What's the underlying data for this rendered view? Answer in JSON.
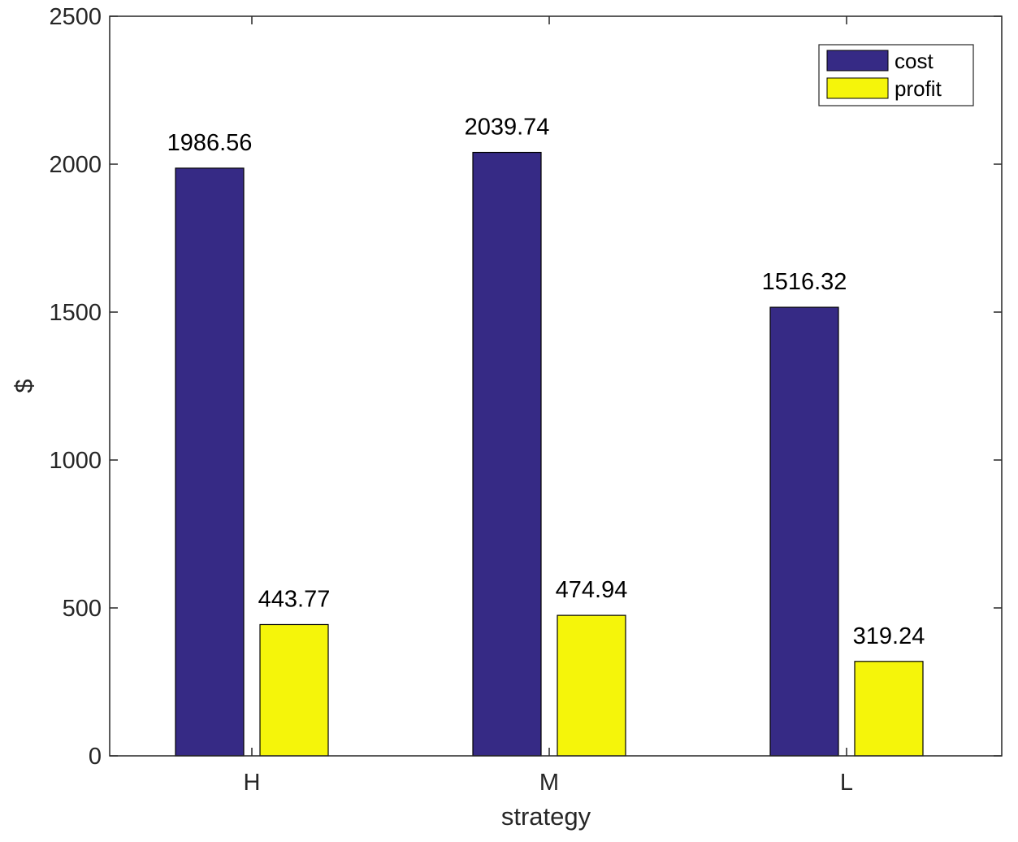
{
  "chart_data": {
    "type": "bar",
    "title": "",
    "xlabel": "strategy",
    "ylabel": "$",
    "categories": [
      "H",
      "M",
      "L"
    ],
    "ylim": [
      0,
      2500
    ],
    "yticks": [
      0,
      500,
      1000,
      1500,
      2000,
      2500
    ],
    "grid": false,
    "legend_position": "top-right",
    "series": [
      {
        "name": "cost",
        "color": "#362a85",
        "values": [
          1986.56,
          2039.74,
          1516.32
        ],
        "labels": [
          "1986.56",
          "2039.74",
          "1516.32"
        ]
      },
      {
        "name": "profit",
        "color": "#f5f50a",
        "values": [
          443.77,
          474.94,
          319.24
        ],
        "labels": [
          "443.77",
          "474.94",
          "319.24"
        ]
      }
    ]
  }
}
